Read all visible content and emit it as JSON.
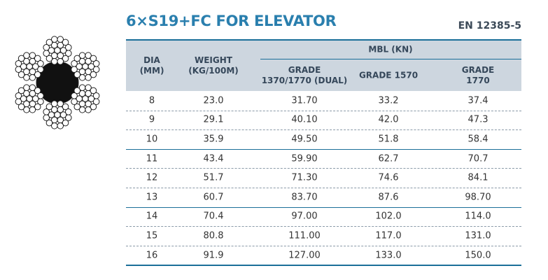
{
  "header": {
    "title": "6×S19+FC FOR ELEVATOR",
    "standard": "EN 12385-5"
  },
  "table": {
    "columns": {
      "dia": "DIA\n(MM)",
      "weight": "WEIGHT\n(KG/100M)",
      "mbl": "MBL (KN)",
      "grades": [
        "GRADE\n1370/1770 (DUAL)",
        "GRADE 1570",
        "GRADE 1770"
      ]
    },
    "rows": [
      [
        "8",
        "23.0",
        "31.70",
        "33.2",
        "37.4"
      ],
      [
        "9",
        "29.1",
        "40.10",
        "42.0",
        "47.3"
      ],
      [
        "10",
        "35.9",
        "49.50",
        "51.8",
        "58.4"
      ],
      [
        "11",
        "43.4",
        "59.90",
        "62.7",
        "70.7"
      ],
      [
        "12",
        "51.7",
        "71.30",
        "74.6",
        "84.1"
      ],
      [
        "13",
        "60.7",
        "83.70",
        "87.6",
        "98.70"
      ],
      [
        "14",
        "70.4",
        "97.00",
        "102.0",
        "114.0"
      ],
      [
        "15",
        "80.8",
        "111.00",
        "117.0",
        "131.0"
      ],
      [
        "16",
        "91.9",
        "127.00",
        "133.0",
        "150.0"
      ]
    ]
  }
}
